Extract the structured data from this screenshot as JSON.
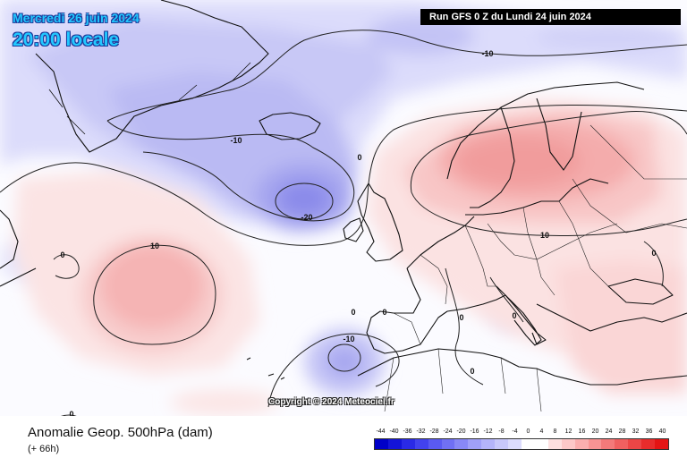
{
  "header": {
    "date": "Mercredi 26 juin 2024",
    "time": "20:00 locale",
    "run": "Run GFS 0 Z du Lundi 24 juin 2024"
  },
  "copyright": "Copyright © 2024 Meteociel.fr",
  "footer": {
    "title": "Anomalie Geop. 500hPa (dam)",
    "lead_time": "(+ 66h)"
  },
  "legend": {
    "labels": [
      "-44",
      "-40",
      "-36",
      "-32",
      "-28",
      "-24",
      "-20",
      "-16",
      "-12",
      "-8",
      "-4",
      "0",
      "4",
      "8",
      "12",
      "16",
      "20",
      "24",
      "28",
      "32",
      "36",
      "40"
    ],
    "colors": [
      "#0000c8",
      "#1414d8",
      "#2a2ae6",
      "#4242ee",
      "#5a5af2",
      "#7070f4",
      "#8888f6",
      "#a0a0f8",
      "#b4b4fa",
      "#c8c8fb",
      "#dcdcfd",
      "#ffffff",
      "#ffffff",
      "#fde0e0",
      "#fcc8c8",
      "#faaeae",
      "#f89494",
      "#f47a7a",
      "#f06060",
      "#ec4646",
      "#e82c2c",
      "#e41414"
    ]
  },
  "contour_labels": [
    {
      "id": "north",
      "text": "-10"
    },
    {
      "id": "iceland",
      "text": "-10"
    },
    {
      "id": "low-center",
      "text": "-20"
    },
    {
      "id": "biscay",
      "text": "0"
    },
    {
      "id": "atlantic",
      "text": "10"
    },
    {
      "id": "west",
      "text": "0"
    },
    {
      "id": "europe",
      "text": "10"
    },
    {
      "id": "iberia-1",
      "text": "0"
    },
    {
      "id": "iberia-2",
      "text": "0"
    },
    {
      "id": "sardinia",
      "text": "0"
    },
    {
      "id": "tyrrhenian",
      "text": "0"
    },
    {
      "id": "maghreb-low",
      "text": "-10"
    },
    {
      "id": "sahara",
      "text": "0"
    },
    {
      "id": "russia",
      "text": "0"
    },
    {
      "id": "southwest",
      "text": "0"
    }
  ]
}
